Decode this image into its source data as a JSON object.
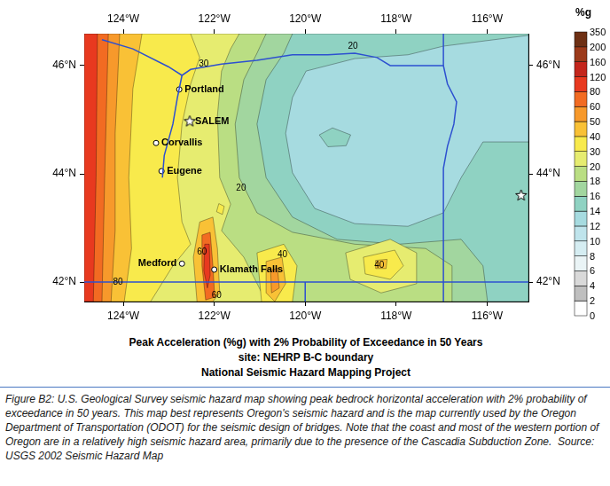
{
  "chart_data": {
    "type": "map",
    "title": "Peak Acceleration (%g) with 2% Probability of Exceedance in 50 Years",
    "subtitle": [
      "site: NEHRP B-C boundary",
      "National Seismic Hazard Mapping Project"
    ],
    "xlim": [
      -124.86,
      -115.09
    ],
    "xticks": [
      {
        "value": -124,
        "label": "124°W"
      },
      {
        "value": -122,
        "label": "122°W"
      },
      {
        "value": -120,
        "label": "120°W"
      },
      {
        "value": -118,
        "label": "118°W"
      },
      {
        "value": -116,
        "label": "116°W"
      }
    ],
    "ylim": [
      41.64,
      46.59
    ],
    "yticks": [
      {
        "value": 42,
        "label": "42°N"
      },
      {
        "value": 44,
        "label": "44°N"
      },
      {
        "value": 46,
        "label": "46°N"
      }
    ],
    "grid": false,
    "colorbar": {
      "title": "%g",
      "ticks": [
        0,
        2,
        4,
        6,
        8,
        10,
        12,
        14,
        16,
        18,
        20,
        30,
        40,
        50,
        60,
        80,
        120,
        160,
        200,
        350
      ],
      "colors": [
        "#ffffff",
        "#bfbfbf",
        "#d9d9d9",
        "#eaf4f6",
        "#d5edf2",
        "#bfe4ec",
        "#a6dbe0",
        "#8fd2c2",
        "#a2d69f",
        "#bade83",
        "#e6ec70",
        "#f8ea4c",
        "#f9c136",
        "#f7992b",
        "#f26b22",
        "#e8391f",
        "#c4261c",
        "#9c3a1a",
        "#6e3014"
      ]
    },
    "regions": [
      {
        "level": 14,
        "polygon": [
          [
            -124.86,
            41.64
          ],
          [
            -115.09,
            41.64
          ],
          [
            -115.09,
            46.59
          ],
          [
            -124.86,
            46.59
          ]
        ]
      },
      {
        "level": 16,
        "polygon": [
          [
            -124.86,
            46.59
          ],
          [
            -120.28,
            46.59
          ],
          [
            -120.47,
            46.23
          ],
          [
            -120.86,
            45.74
          ],
          [
            -121.06,
            44.92
          ],
          [
            -120.86,
            43.93
          ],
          [
            -120.28,
            43.2
          ],
          [
            -119.3,
            42.79
          ],
          [
            -117.94,
            42.7
          ],
          [
            -116.57,
            42.79
          ],
          [
            -116.09,
            42.3
          ],
          [
            -115.99,
            41.64
          ],
          [
            -124.86,
            41.64
          ]
        ]
      },
      {
        "level": 12,
        "polygon": [
          [
            -120.28,
            45.41
          ],
          [
            -119.98,
            45.9
          ],
          [
            -118.91,
            46.13
          ],
          [
            -117.74,
            46.2
          ],
          [
            -116.96,
            46.36
          ],
          [
            -115.09,
            46.56
          ],
          [
            -115.09,
            44.59
          ],
          [
            -116.09,
            44.59
          ],
          [
            -116.57,
            43.93
          ],
          [
            -116.96,
            43.28
          ],
          [
            -117.74,
            43.03
          ],
          [
            -118.91,
            43.08
          ],
          [
            -119.79,
            43.36
          ],
          [
            -120.28,
            44.02
          ],
          [
            -120.43,
            44.75
          ]
        ]
      },
      {
        "level": 14,
        "polygon": [
          [
            -119.69,
            44.72
          ],
          [
            -119.4,
            44.85
          ],
          [
            -119.0,
            44.72
          ],
          [
            -119.1,
            44.52
          ],
          [
            -119.5,
            44.5
          ]
        ]
      },
      {
        "level": 18,
        "polygon": [
          [
            -124.86,
            46.59
          ],
          [
            -120.86,
            46.59
          ],
          [
            -121.06,
            46.23
          ],
          [
            -121.35,
            45.74
          ],
          [
            -121.54,
            44.92
          ],
          [
            -121.45,
            43.93
          ],
          [
            -121.06,
            43.28
          ],
          [
            -120.28,
            42.92
          ],
          [
            -118.91,
            42.7
          ],
          [
            -117.35,
            42.62
          ],
          [
            -116.77,
            42.3
          ],
          [
            -116.77,
            41.64
          ],
          [
            -124.86,
            41.64
          ]
        ]
      },
      {
        "level": 20,
        "polygon": [
          [
            -124.86,
            46.59
          ],
          [
            -121.45,
            46.59
          ],
          [
            -121.64,
            46.31
          ],
          [
            -121.84,
            45.9
          ],
          [
            -121.93,
            45.08
          ],
          [
            -121.88,
            43.93
          ],
          [
            -121.64,
            43.44
          ],
          [
            -121.84,
            42.95
          ],
          [
            -121.35,
            42.46
          ],
          [
            -120.86,
            41.64
          ],
          [
            -124.86,
            41.64
          ]
        ]
      },
      {
        "level": 30,
        "polygon": [
          [
            -124.86,
            46.59
          ],
          [
            -122.52,
            46.59
          ],
          [
            -122.32,
            46.15
          ],
          [
            -122.52,
            45.66
          ],
          [
            -122.71,
            44.92
          ],
          [
            -122.81,
            43.93
          ],
          [
            -122.71,
            43.11
          ],
          [
            -122.52,
            42.7
          ],
          [
            -122.91,
            42.3
          ],
          [
            -123.4,
            41.64
          ],
          [
            -124.86,
            41.64
          ]
        ]
      },
      {
        "level": 40,
        "polygon": [
          [
            -124.86,
            46.59
          ],
          [
            -123.59,
            46.59
          ],
          [
            -123.79,
            45.57
          ],
          [
            -123.88,
            43.93
          ],
          [
            -123.82,
            42.62
          ],
          [
            -123.98,
            41.64
          ],
          [
            -124.86,
            41.64
          ]
        ]
      },
      {
        "level": 50,
        "polygon": [
          [
            -124.86,
            46.59
          ],
          [
            -124.08,
            46.59
          ],
          [
            -124.18,
            44.75
          ],
          [
            -124.18,
            42.95
          ],
          [
            -124.27,
            41.64
          ],
          [
            -124.86,
            41.64
          ]
        ]
      },
      {
        "level": 60,
        "polygon": [
          [
            -124.86,
            46.59
          ],
          [
            -124.33,
            46.59
          ],
          [
            -124.41,
            43.93
          ],
          [
            -124.47,
            41.64
          ],
          [
            -124.86,
            41.64
          ]
        ]
      },
      {
        "level": 80,
        "polygon": [
          [
            -124.86,
            46.59
          ],
          [
            -124.57,
            46.59
          ],
          [
            -124.6,
            43.93
          ],
          [
            -124.66,
            41.64
          ],
          [
            -124.86,
            41.64
          ]
        ]
      },
      {
        "level": 40,
        "polygon": [
          [
            -122.32,
            43.11
          ],
          [
            -122.03,
            43.2
          ],
          [
            -121.93,
            42.62
          ],
          [
            -121.88,
            41.8
          ],
          [
            -122.03,
            41.64
          ],
          [
            -122.38,
            41.64
          ],
          [
            -122.46,
            42.46
          ]
        ]
      },
      {
        "level": 60,
        "polygon": [
          [
            -122.27,
            42.87
          ],
          [
            -122.09,
            42.92
          ],
          [
            -122.03,
            42.3
          ],
          [
            -121.99,
            41.72
          ],
          [
            -122.19,
            41.67
          ],
          [
            -122.27,
            42.3
          ]
        ]
      },
      {
        "level": 80,
        "polygon": [
          [
            -122.21,
            42.7
          ],
          [
            -122.11,
            42.7
          ],
          [
            -122.09,
            42.13
          ],
          [
            -122.15,
            41.89
          ],
          [
            -122.23,
            42.21
          ]
        ]
      },
      {
        "level": 30,
        "polygon": [
          [
            -121.9,
            43.45
          ],
          [
            -121.78,
            43.4
          ],
          [
            -121.82,
            43.25
          ],
          [
            -121.95,
            43.3
          ]
        ]
      },
      {
        "level": 30,
        "polygon": [
          [
            -121.06,
            42.54
          ],
          [
            -120.47,
            42.7
          ],
          [
            -120.18,
            42.3
          ],
          [
            -120.28,
            41.64
          ],
          [
            -120.96,
            41.64
          ]
        ]
      },
      {
        "level": 40,
        "polygon": [
          [
            -120.86,
            42.38
          ],
          [
            -120.51,
            42.46
          ],
          [
            -120.43,
            41.97
          ],
          [
            -120.67,
            41.64
          ],
          [
            -120.86,
            41.8
          ]
        ]
      },
      {
        "level": 50,
        "polygon": [
          [
            -120.76,
            42.21
          ],
          [
            -120.61,
            42.26
          ],
          [
            -120.57,
            41.89
          ],
          [
            -120.74,
            41.8
          ]
        ]
      },
      {
        "level": 20,
        "polygon": [
          [
            -119.11,
            42.54
          ],
          [
            -118.13,
            42.79
          ],
          [
            -117.55,
            42.54
          ],
          [
            -117.55,
            41.97
          ],
          [
            -118.33,
            41.8
          ],
          [
            -119.01,
            42.05
          ]
        ]
      },
      {
        "level": 30,
        "polygon": [
          [
            -118.72,
            42.46
          ],
          [
            -118.03,
            42.59
          ],
          [
            -117.84,
            42.3
          ],
          [
            -118.13,
            42.05
          ],
          [
            -118.68,
            42.15
          ]
        ]
      },
      {
        "level": 40,
        "polygon": [
          [
            -118.45,
            42.4
          ],
          [
            -118.2,
            42.42
          ],
          [
            -118.22,
            42.25
          ],
          [
            -118.45,
            42.25
          ]
        ]
      }
    ],
    "boundaries": {
      "color": "#2d50d0",
      "lines": [
        [
          [
            -124.47,
            46.48
          ],
          [
            -123.79,
            46.31
          ],
          [
            -123.01,
            45.98
          ],
          [
            -122.71,
            45.82
          ],
          [
            -122.52,
            45.93
          ],
          [
            -121.84,
            46.03
          ],
          [
            -121.06,
            46.1
          ],
          [
            -120.28,
            46.2
          ],
          [
            -119.5,
            46.2
          ],
          [
            -118.91,
            46.23
          ],
          [
            -118.42,
            46.15
          ],
          [
            -118.13,
            46.0
          ],
          [
            -116.96,
            46.0
          ]
        ],
        [
          [
            -116.96,
            46.0
          ],
          [
            -116.87,
            45.66
          ],
          [
            -116.67,
            45.33
          ],
          [
            -116.73,
            44.92
          ],
          [
            -116.87,
            44.51
          ],
          [
            -116.96,
            44.1
          ],
          [
            -116.96,
            41.64
          ]
        ],
        [
          [
            -116.96,
            46.0
          ],
          [
            -116.96,
            46.59
          ]
        ],
        [
          [
            -124.86,
            42.0
          ],
          [
            -115.09,
            42.0
          ]
        ],
        [
          [
            -122.71,
            45.82
          ],
          [
            -122.81,
            45.41
          ],
          [
            -122.91,
            44.92
          ],
          [
            -123.1,
            44.34
          ],
          [
            -123.14,
            43.93
          ]
        ],
        [
          [
            -120.0,
            42.0
          ],
          [
            -120.0,
            41.64
          ]
        ]
      ]
    },
    "cities": [
      {
        "name": "Portland",
        "x": -122.77,
        "y": 45.56,
        "marker": "circle"
      },
      {
        "name": "SALEM",
        "x": -122.54,
        "y": 44.97,
        "marker": "star"
      },
      {
        "name": "Corvallis",
        "x": -123.28,
        "y": 44.57,
        "marker": "circle"
      },
      {
        "name": "Eugene",
        "x": -123.16,
        "y": 44.05,
        "marker": "circle"
      },
      {
        "name": "Medford",
        "x": -122.71,
        "y": 42.34,
        "marker": "circle"
      },
      {
        "name": "Klamath Falls",
        "x": -122.0,
        "y": 42.23,
        "marker": "circle"
      },
      {
        "x": -115.25,
        "y": 43.6,
        "marker": "star"
      }
    ],
    "contour_labels": [
      {
        "text": "30",
        "x": -122.23,
        "y": 46.03
      },
      {
        "text": "20",
        "x": -118.95,
        "y": 46.36
      },
      {
        "text": "20",
        "x": -121.41,
        "y": 43.74
      },
      {
        "text": "80",
        "x": -124.12,
        "y": 42.0
      },
      {
        "text": "60",
        "x": -122.27,
        "y": 42.55
      },
      {
        "text": "60",
        "x": -121.95,
        "y": 41.75
      },
      {
        "text": "40",
        "x": -120.5,
        "y": 42.5
      },
      {
        "text": "40",
        "x": -118.37,
        "y": 42.3
      }
    ]
  },
  "caption": "Figure B2: U.S. Geological Survey seismic hazard map showing peak bedrock horizontal acceleration with 2% probability of exceedance in 50 years. This map best represents Oregon's seismic hazard and is the map currently used by the Oregon Department of Transportation (ODOT) for the seismic design of bridges. Note that the coast and most of the western portion of Oregon are in a relatively high seismic hazard area, primarily due to the presence of the Cascadia Subduction Zone.  Source: USGS 2002 Seismic Hazard Map"
}
